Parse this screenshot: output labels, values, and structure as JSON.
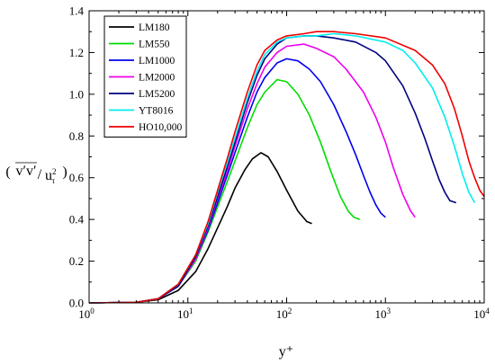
{
  "chart_data": {
    "type": "line",
    "xlabel": "y⁺",
    "ylabel": {
      "numerator": "v′v′",
      "denominator": "u",
      "denominator_sub": "τ",
      "denominator_sup": "2"
    },
    "xscale": "log",
    "xlim": [
      1,
      10000
    ],
    "ylim": [
      0,
      1.4
    ],
    "x_ticks": [
      {
        "value": 1,
        "base": "10",
        "exp": "0"
      },
      {
        "value": 10,
        "base": "10",
        "exp": "1"
      },
      {
        "value": 100,
        "base": "10",
        "exp": "2"
      },
      {
        "value": 1000,
        "base": "10",
        "exp": "3"
      },
      {
        "value": 10000,
        "base": "10",
        "exp": "4"
      }
    ],
    "y_ticks": [
      "0.0",
      "0.2",
      "0.4",
      "0.6",
      "0.8",
      "1.0",
      "1.2",
      "1.4"
    ],
    "legend_position": "top-left",
    "series": [
      {
        "name": "LM180",
        "color": "#000000",
        "x": [
          1,
          3,
          5,
          8,
          12,
          16,
          20,
          25,
          30,
          38,
          45,
          55,
          65,
          80,
          100,
          130,
          160,
          180
        ],
        "y": [
          0,
          0.003,
          0.015,
          0.06,
          0.15,
          0.26,
          0.36,
          0.46,
          0.55,
          0.64,
          0.69,
          0.72,
          0.7,
          0.63,
          0.54,
          0.44,
          0.39,
          0.38
        ]
      },
      {
        "name": "LM550",
        "color": "#00dd00",
        "x": [
          1,
          3,
          5,
          8,
          12,
          16,
          20,
          25,
          30,
          40,
          50,
          60,
          80,
          100,
          130,
          170,
          220,
          280,
          350,
          420,
          480,
          550
        ],
        "y": [
          0,
          0.003,
          0.02,
          0.08,
          0.2,
          0.34,
          0.46,
          0.58,
          0.68,
          0.84,
          0.95,
          1.01,
          1.07,
          1.06,
          1.0,
          0.9,
          0.77,
          0.63,
          0.51,
          0.44,
          0.41,
          0.4
        ]
      },
      {
        "name": "LM1000",
        "color": "#0000ee",
        "x": [
          1,
          3,
          5,
          8,
          12,
          16,
          20,
          25,
          30,
          40,
          50,
          60,
          80,
          100,
          130,
          170,
          220,
          300,
          400,
          500,
          600,
          700,
          800,
          900,
          1000
        ],
        "y": [
          0,
          0.003,
          0.02,
          0.08,
          0.21,
          0.35,
          0.48,
          0.61,
          0.72,
          0.89,
          1.01,
          1.08,
          1.15,
          1.17,
          1.16,
          1.12,
          1.06,
          0.95,
          0.82,
          0.71,
          0.61,
          0.53,
          0.47,
          0.43,
          0.41
        ]
      },
      {
        "name": "LM2000",
        "color": "#ee00ee",
        "x": [
          1,
          3,
          5,
          8,
          12,
          16,
          20,
          25,
          30,
          40,
          50,
          60,
          80,
          100,
          150,
          200,
          300,
          400,
          600,
          800,
          1000,
          1200,
          1500,
          1800,
          2000
        ],
        "y": [
          0,
          0.003,
          0.02,
          0.08,
          0.21,
          0.36,
          0.5,
          0.63,
          0.75,
          0.93,
          1.05,
          1.13,
          1.2,
          1.23,
          1.24,
          1.22,
          1.18,
          1.12,
          1.01,
          0.89,
          0.77,
          0.65,
          0.52,
          0.44,
          0.41
        ]
      },
      {
        "name": "LM5200",
        "color": "#000080",
        "x": [
          1,
          3,
          5,
          8,
          12,
          16,
          20,
          25,
          30,
          40,
          50,
          60,
          80,
          100,
          150,
          200,
          300,
          500,
          800,
          1000,
          1500,
          2000,
          2500,
          3000,
          3500,
          4000,
          4500,
          5200
        ],
        "y": [
          0,
          0.003,
          0.02,
          0.08,
          0.22,
          0.37,
          0.51,
          0.65,
          0.77,
          0.96,
          1.09,
          1.17,
          1.24,
          1.27,
          1.28,
          1.28,
          1.27,
          1.25,
          1.2,
          1.16,
          1.04,
          0.91,
          0.79,
          0.68,
          0.59,
          0.53,
          0.49,
          0.48
        ]
      },
      {
        "name": "YT8016",
        "color": "#00eeee",
        "x": [
          1,
          3,
          5,
          8,
          12,
          16,
          20,
          25,
          30,
          40,
          50,
          60,
          80,
          100,
          150,
          200,
          300,
          500,
          1000,
          1500,
          2000,
          3000,
          4000,
          5000,
          6000,
          7000,
          8016
        ],
        "y": [
          0,
          0.003,
          0.02,
          0.09,
          0.23,
          0.38,
          0.53,
          0.67,
          0.79,
          0.98,
          1.11,
          1.19,
          1.25,
          1.27,
          1.28,
          1.28,
          1.29,
          1.28,
          1.25,
          1.21,
          1.15,
          1.03,
          0.89,
          0.75,
          0.62,
          0.53,
          0.48
        ]
      },
      {
        "name": "HO10,000",
        "color": "#ee0000",
        "x": [
          1,
          3,
          5,
          8,
          12,
          16,
          20,
          25,
          30,
          40,
          50,
          60,
          80,
          100,
          150,
          200,
          300,
          500,
          1000,
          2000,
          3000,
          4000,
          5000,
          6000,
          7000,
          8000,
          9000,
          10000
        ],
        "y": [
          0,
          0.003,
          0.02,
          0.09,
          0.23,
          0.39,
          0.54,
          0.69,
          0.82,
          1.01,
          1.14,
          1.21,
          1.26,
          1.28,
          1.29,
          1.3,
          1.3,
          1.29,
          1.27,
          1.21,
          1.14,
          1.05,
          0.93,
          0.8,
          0.68,
          0.6,
          0.54,
          0.51
        ]
      }
    ]
  }
}
